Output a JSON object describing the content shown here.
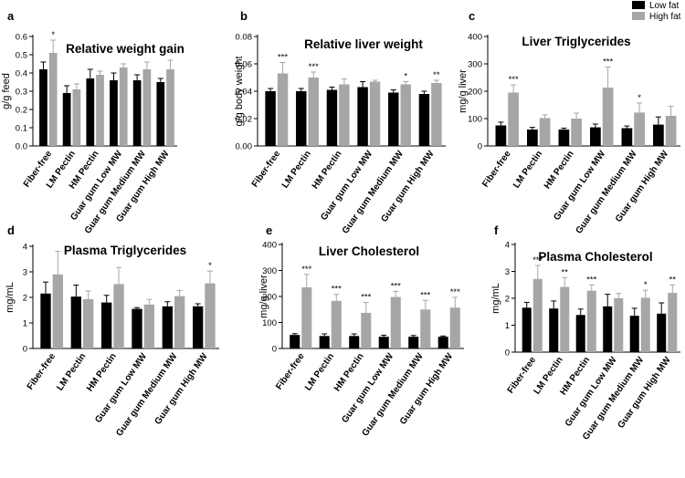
{
  "legend": [
    {
      "name": "Low fat",
      "color": "#000000"
    },
    {
      "name": "High fat",
      "color": "#a6a6a6"
    }
  ],
  "chart_data": [
    {
      "panel": "a",
      "type": "bar",
      "title": "Relative weight gain",
      "ylabel": "g/g feed",
      "ylim": [
        0,
        0.6
      ],
      "ticks": [
        "0.0",
        "0.1",
        "0.2",
        "0.3",
        "0.4",
        "0.5",
        "0.6"
      ],
      "categories": [
        "Fiber-free",
        "LM Pectin",
        "HM Pectin",
        "Guar gum Low MW",
        "Guar gum Medium MW",
        "Guar gum High MW"
      ],
      "series": [
        {
          "name": "Low fat",
          "values": [
            0.42,
            0.29,
            0.37,
            0.36,
            0.36,
            0.35
          ],
          "errors": [
            0.04,
            0.04,
            0.05,
            0.04,
            0.03,
            0.02
          ]
        },
        {
          "name": "High fat",
          "values": [
            0.51,
            0.31,
            0.39,
            0.43,
            0.42,
            0.42
          ],
          "errors": [
            0.07,
            0.03,
            0.02,
            0.02,
            0.04,
            0.05
          ]
        }
      ],
      "significance": [
        "*",
        "",
        "",
        "",
        "",
        ""
      ]
    },
    {
      "panel": "b",
      "type": "bar",
      "title": "Relative liver weight",
      "ylabel": "g/g body weight",
      "ylim": [
        0,
        0.08
      ],
      "ticks": [
        "0.00",
        "0.02",
        "0.04",
        "0.06",
        "0.08"
      ],
      "categories": [
        "Fiber-free",
        "LM Pectin",
        "HM Pectin",
        "Guar gum Low MW",
        "Guar gum Medium MW",
        "Guar gum High MW"
      ],
      "series": [
        {
          "name": "Low fat",
          "values": [
            0.04,
            0.04,
            0.041,
            0.043,
            0.039,
            0.038
          ],
          "errors": [
            0.002,
            0.002,
            0.002,
            0.004,
            0.002,
            0.002
          ]
        },
        {
          "name": "High fat",
          "values": [
            0.053,
            0.05,
            0.045,
            0.047,
            0.045,
            0.046
          ],
          "errors": [
            0.008,
            0.004,
            0.004,
            0.001,
            0.002,
            0.002
          ]
        }
      ],
      "significance": [
        "***",
        "***",
        "",
        "",
        "*",
        "**"
      ]
    },
    {
      "panel": "c",
      "type": "bar",
      "title": "Liver Triglycerides",
      "ylabel": "mg/g liver",
      "ylim": [
        0,
        400
      ],
      "ticks": [
        "0",
        "100",
        "200",
        "300",
        "400"
      ],
      "categories": [
        "Fiber-free",
        "LM Pectin",
        "HM Pectin",
        "Guar gum Low MW",
        "Guar gum Medium MW",
        "Guar gum High MW"
      ],
      "series": [
        {
          "name": "Low fat",
          "values": [
            75,
            60,
            60,
            68,
            65,
            78
          ],
          "errors": [
            12,
            8,
            5,
            12,
            8,
            28
          ]
        },
        {
          "name": "High fat",
          "values": [
            195,
            102,
            100,
            213,
            122,
            110
          ],
          "errors": [
            28,
            12,
            20,
            75,
            35,
            35
          ]
        }
      ],
      "significance": [
        "***",
        "",
        "",
        "***",
        "*",
        ""
      ]
    },
    {
      "panel": "d",
      "type": "bar",
      "title": "Plasma Triglycerides",
      "ylabel": "mg/mL",
      "ylim": [
        0,
        4
      ],
      "ticks": [
        "0",
        "1",
        "2",
        "3",
        "4"
      ],
      "categories": [
        "Fiber-free",
        "LM Pectin",
        "HM Pectin",
        "Guar gum Low MW",
        "Guar gum Medium MW",
        "Guar gum High MW"
      ],
      "series": [
        {
          "name": "Low fat",
          "values": [
            2.15,
            2.03,
            1.8,
            1.55,
            1.65,
            1.65
          ],
          "errors": [
            0.45,
            0.45,
            0.28,
            0.05,
            0.18,
            0.1
          ]
        },
        {
          "name": "High fat",
          "values": [
            2.9,
            1.93,
            2.52,
            1.72,
            2.05,
            2.55
          ],
          "errors": [
            0.9,
            0.32,
            0.65,
            0.2,
            0.22,
            0.48
          ]
        }
      ],
      "significance": [
        "",
        "",
        "",
        "",
        "",
        "*"
      ]
    },
    {
      "panel": "e",
      "type": "bar",
      "title": "Liver Cholesterol",
      "ylabel": "mg/g liver",
      "ylim": [
        0,
        400
      ],
      "ticks": [
        "0",
        "100",
        "200",
        "300",
        "400"
      ],
      "categories": [
        "Fiber-free",
        "LM Pectin",
        "HM Pectin",
        "Guar gum Low MW",
        "Guar gum Medium MW",
        "Guar gum High MW"
      ],
      "series": [
        {
          "name": "Low fat",
          "values": [
            52,
            48,
            48,
            45,
            45,
            45
          ],
          "errors": [
            5,
            8,
            8,
            6,
            5,
            3
          ]
        },
        {
          "name": "High fat",
          "values": [
            235,
            183,
            137,
            198,
            150,
            157
          ],
          "errors": [
            50,
            25,
            40,
            22,
            35,
            40
          ]
        }
      ],
      "significance": [
        "***",
        "***",
        "***",
        "***",
        "***",
        "***"
      ]
    },
    {
      "panel": "f",
      "type": "bar",
      "title": "Plasma Cholesterol",
      "ylabel": "mg/mL",
      "ylim": [
        0,
        4
      ],
      "ticks": [
        "0",
        "1",
        "2",
        "3",
        "4"
      ],
      "categories": [
        "Fiber-free",
        "LM Pectin",
        "HM Pectin",
        "Guar gum Low MW",
        "Guar gum Medium MW",
        "Guar gum High MW"
      ],
      "series": [
        {
          "name": "Low fat",
          "values": [
            1.65,
            1.62,
            1.38,
            1.7,
            1.35,
            1.43
          ],
          "errors": [
            0.2,
            0.28,
            0.22,
            0.45,
            0.28,
            0.4
          ]
        },
        {
          "name": "High fat",
          "values": [
            2.72,
            2.42,
            2.28,
            2.0,
            2.02,
            2.2
          ],
          "errors": [
            0.5,
            0.35,
            0.22,
            0.18,
            0.28,
            0.3
          ]
        }
      ],
      "significance": [
        "***",
        "**",
        "***",
        "",
        "*",
        "**"
      ]
    }
  ]
}
